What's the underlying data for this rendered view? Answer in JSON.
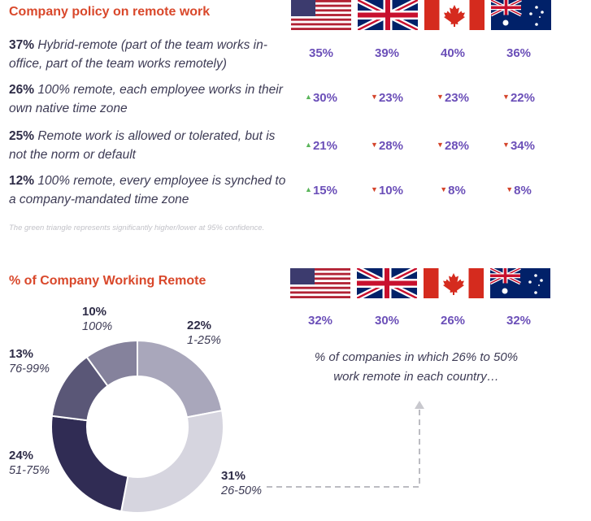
{
  "policy": {
    "title": "Company policy on remote work",
    "rows": [
      {
        "pct": "37%",
        "text": "Hybrid-remote (part of the team works in-office, part of the team works remotely)",
        "values": [
          {
            "v": "35%",
            "m": ""
          },
          {
            "v": "39%",
            "m": ""
          },
          {
            "v": "40%",
            "m": ""
          },
          {
            "v": "36%",
            "m": ""
          }
        ]
      },
      {
        "pct": "26%",
        "text": "100% remote, each employee works in their own native time zone",
        "values": [
          {
            "v": "30%",
            "m": "up"
          },
          {
            "v": "23%",
            "m": "down"
          },
          {
            "v": "23%",
            "m": "down"
          },
          {
            "v": "22%",
            "m": "down"
          }
        ]
      },
      {
        "pct": "25%",
        "text": "Remote work is allowed or tolerated, but is not the norm or default",
        "values": [
          {
            "v": "21%",
            "m": "up"
          },
          {
            "v": "28%",
            "m": "down"
          },
          {
            "v": "28%",
            "m": "down"
          },
          {
            "v": "34%",
            "m": "down"
          }
        ]
      },
      {
        "pct": "12%",
        "text": "100% remote, every employee is synched to a company-mandated time zone",
        "values": [
          {
            "v": "15%",
            "m": "up"
          },
          {
            "v": "10%",
            "m": "down"
          },
          {
            "v": "8%",
            "m": "down"
          },
          {
            "v": "8%",
            "m": "down"
          }
        ]
      }
    ],
    "footnote": "The green triangle represents significantly higher/lower at 95% confidence."
  },
  "flags": [
    "us-flag",
    "uk-flag",
    "canada-flag",
    "australia-flag"
  ],
  "colors": {
    "accent": "#d9482b",
    "value": "#6b4fb8",
    "up": "#5bb55b",
    "down": "#d4442b"
  },
  "working": {
    "title": "% of Company Working Remote",
    "country_values": [
      "32%",
      "30%",
      "26%",
      "32%"
    ],
    "note": "% of companies in which 26% to 50% work remote in each country…"
  },
  "chart_data": {
    "type": "pie",
    "donut": true,
    "slices": [
      {
        "label": "1-25%",
        "value": 22,
        "display": "22%",
        "color": "#a9a7bb"
      },
      {
        "label": "26-50%",
        "value": 31,
        "display": "31%",
        "color": "#d6d5df"
      },
      {
        "label": "51-75%",
        "value": 24,
        "display": "24%",
        "color": "#302c54"
      },
      {
        "label": "76-99%",
        "value": 13,
        "display": "13%",
        "color": "#5a5777"
      },
      {
        "label": "100%",
        "value": 10,
        "display": "10%",
        "color": "#85829c"
      }
    ]
  }
}
